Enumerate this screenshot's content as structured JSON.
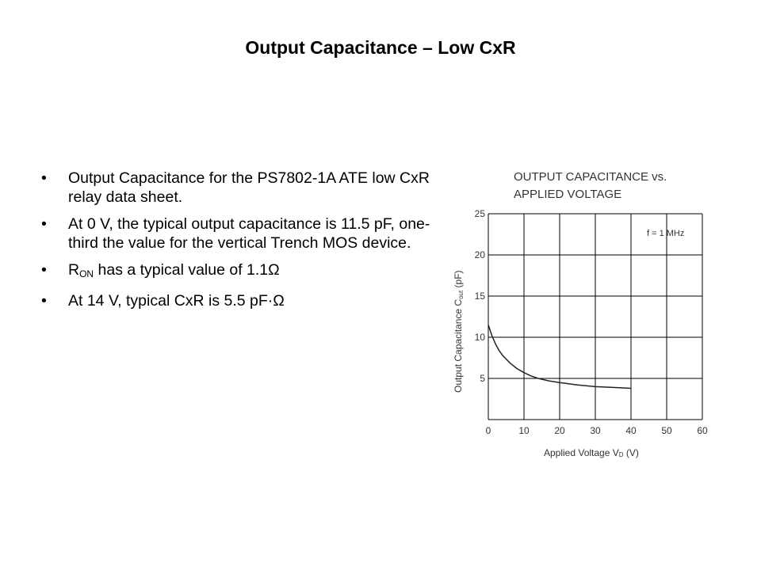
{
  "slide": {
    "title": "Output Capacitance – Low CxR",
    "bullets": [
      "Output Capacitance for the PS7802-1A ATE low CxR relay data sheet.",
      "At 0 V, the typical output capacitance is 11.5 pF, one-third the value for the vertical Trench MOS device.",
      {
        "pre": "R",
        "sub": "ON",
        "post": " has a typical value of 1.1Ω"
      },
      "At 14 V, typical CxR is 5.5 pF·Ω"
    ]
  },
  "chart_data": {
    "type": "line",
    "title_line1": "OUTPUT CAPACITANCE vs.",
    "title_line2": "APPLIED VOLTAGE",
    "annotation": "f = 1 MHz",
    "xlabel": {
      "pre": "Applied Voltage  V",
      "sub": "D",
      "post": " (V)"
    },
    "ylabel": {
      "pre": "Output Capacitance  C",
      "sub": "out",
      "post": " (pF)"
    },
    "xlim": [
      0,
      60
    ],
    "ylim": [
      0,
      25
    ],
    "xticks": [
      0,
      10,
      20,
      30,
      40,
      50,
      60
    ],
    "yticks": [
      5,
      10,
      15,
      20,
      25
    ],
    "grid": true,
    "series": [
      {
        "x": [
          0,
          1,
          2,
          3,
          4,
          6,
          8,
          10,
          12,
          14,
          17,
          20,
          25,
          30,
          35,
          40
        ],
        "y": [
          11.5,
          10.2,
          9.2,
          8.4,
          7.8,
          6.9,
          6.2,
          5.7,
          5.3,
          5.0,
          4.7,
          4.5,
          4.2,
          4.0,
          3.9,
          3.8
        ]
      }
    ],
    "colors": {
      "line": "#222222",
      "grid": "#000000"
    }
  }
}
